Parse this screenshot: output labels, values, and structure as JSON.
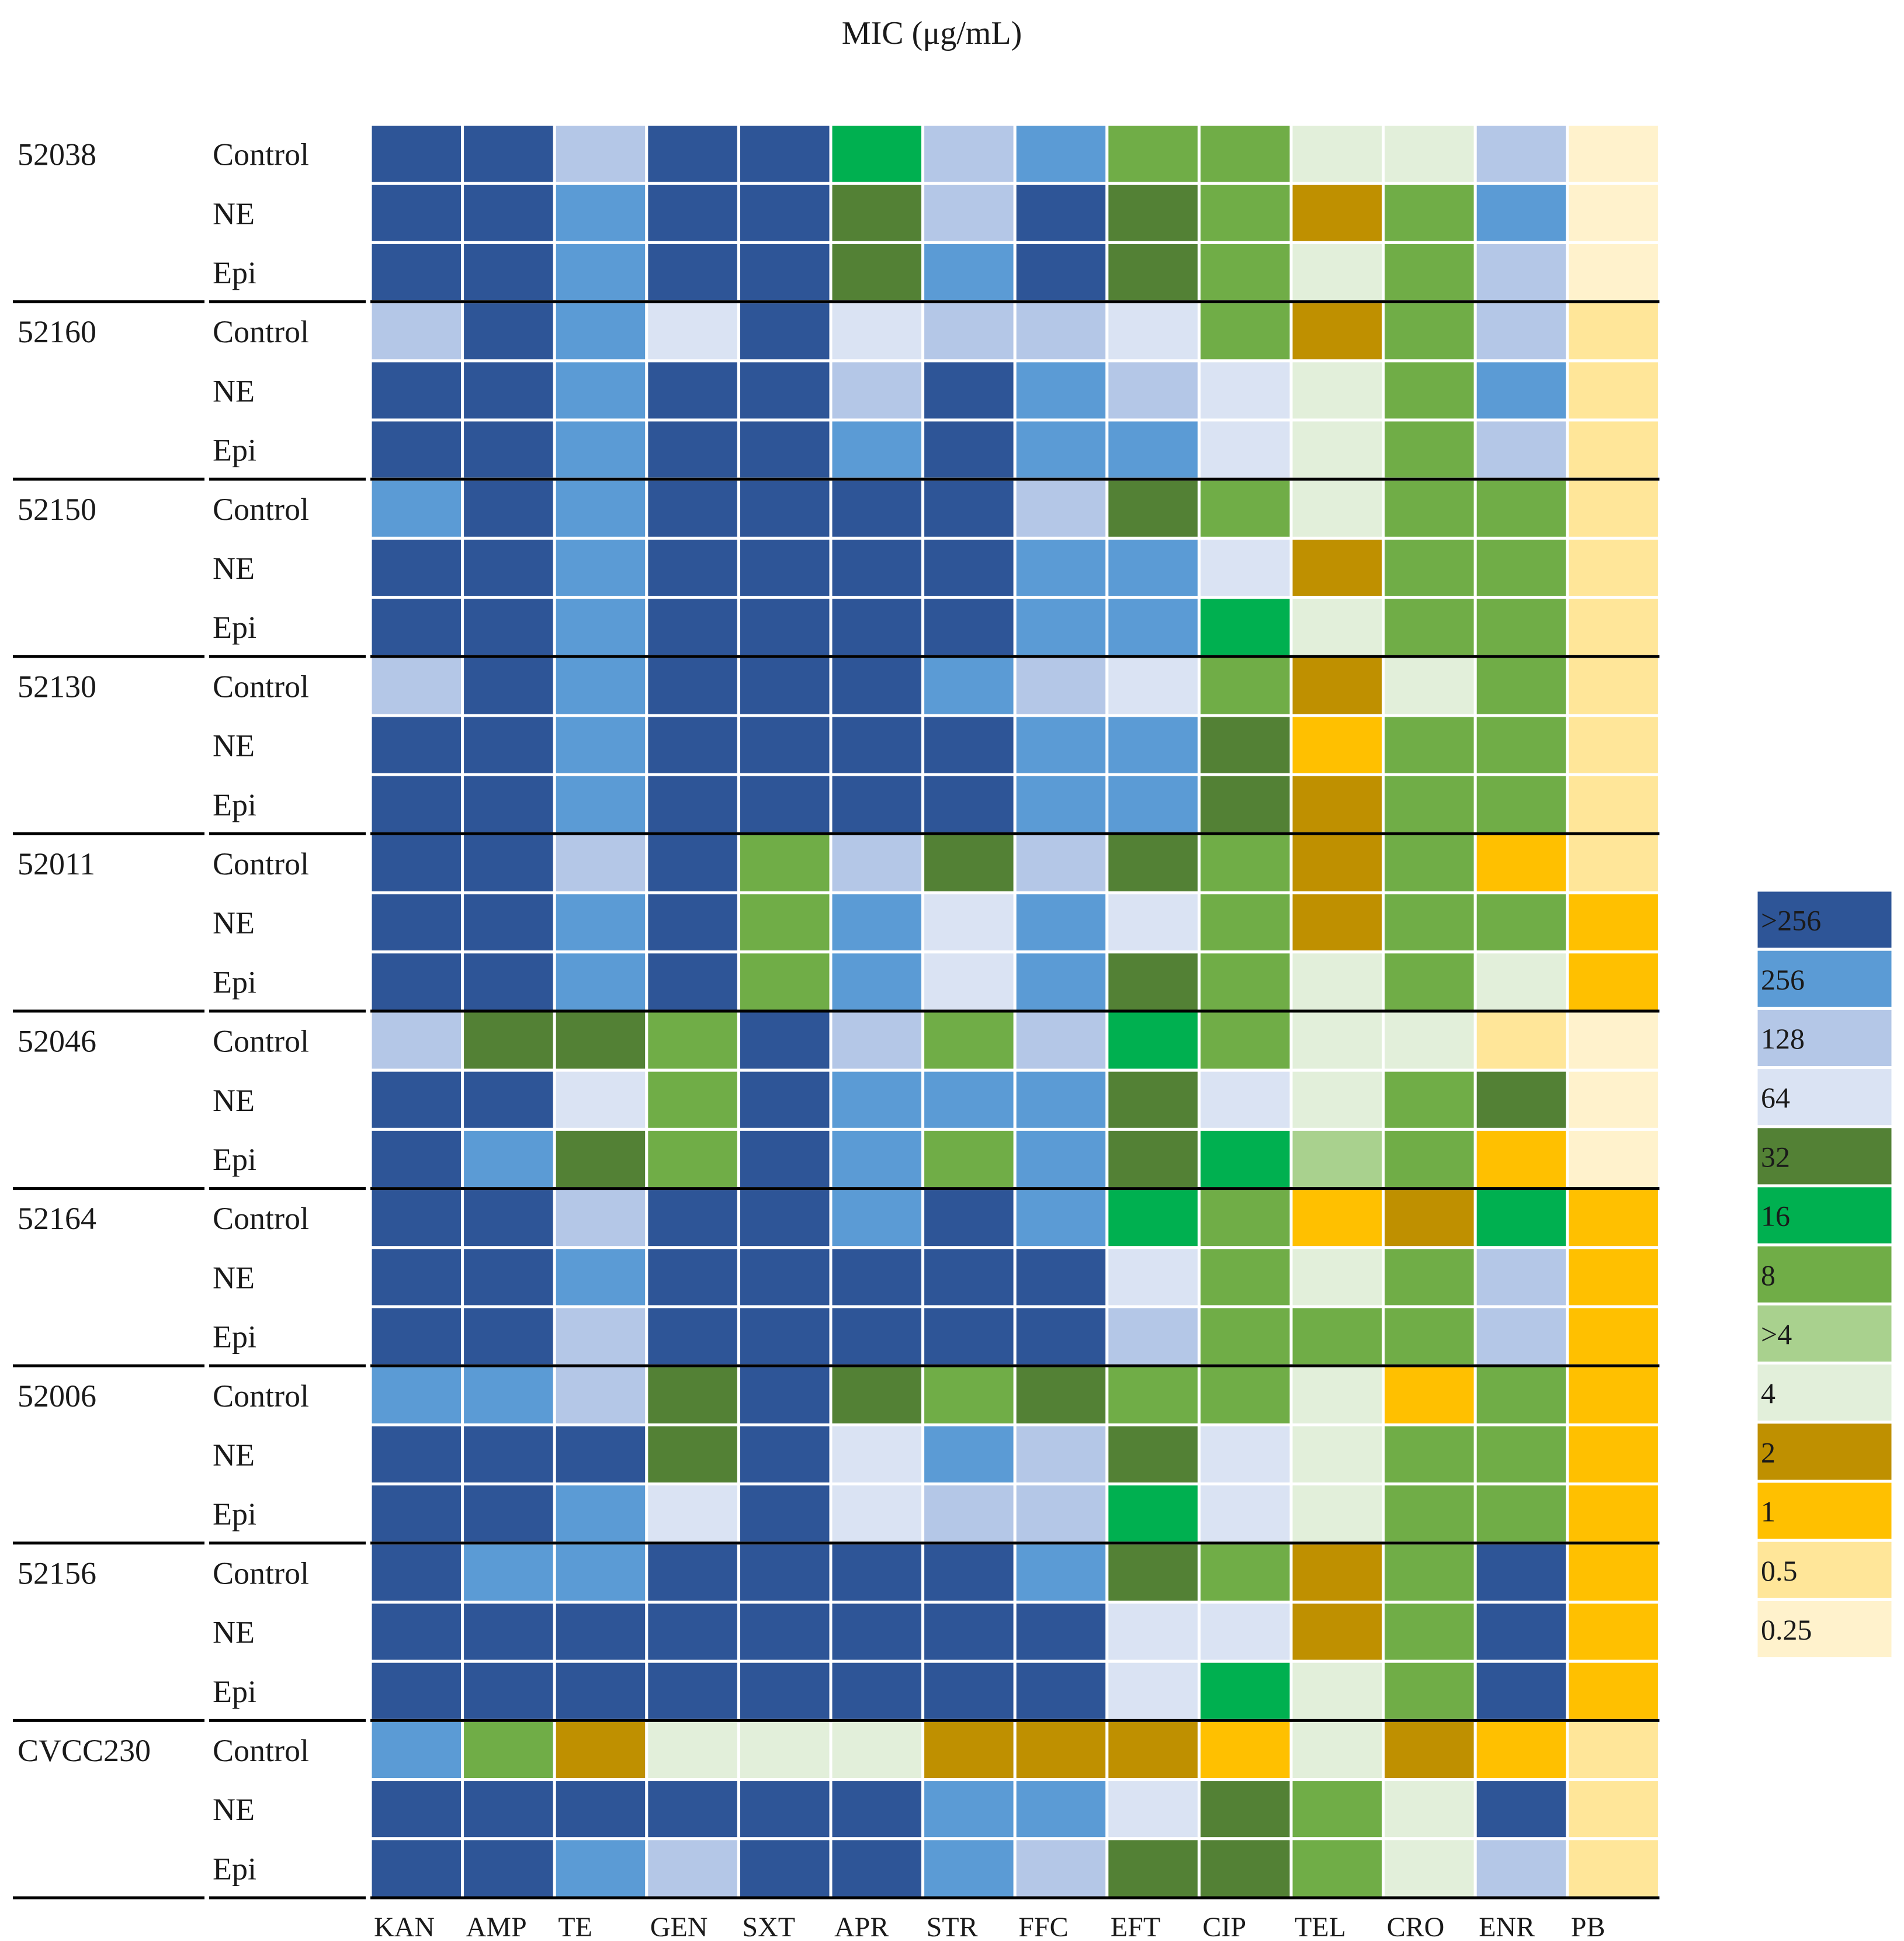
{
  "chart_data": {
    "type": "heatmap",
    "title": "MIC (μg/mL)",
    "xlabel": "",
    "ylabel": "",
    "columns": [
      "KAN",
      "AMP",
      "TE",
      "GEN",
      "SXT",
      "APR",
      "STR",
      "FFC",
      "EFT",
      "CIP",
      "TEL",
      "CRO",
      "ENR",
      "PB"
    ],
    "strains": [
      "52038",
      "52160",
      "52150",
      "52130",
      "52011",
      "52046",
      "52164",
      "52006",
      "52156",
      "CVCC230"
    ],
    "treatments": [
      "Control",
      "NE",
      "Epi"
    ],
    "legend": {
      "position": "right",
      "levels": [
        ">256",
        "256",
        "128",
        "64",
        "32",
        "16",
        "8",
        ">4",
        "4",
        "2",
        "1",
        "0.5",
        "0.25"
      ],
      "colors": [
        "#2e5597",
        "#5b9bd5",
        "#b4c7e7",
        "#dae3f3",
        "#538135",
        "#00b050",
        "#70ad47",
        "#a9d18e",
        "#e2efda",
        "#bf9000",
        "#ffc000",
        "#ffe699",
        "#fff2cc"
      ]
    },
    "rows": [
      {
        "strain": "52038",
        "treatment": "Control",
        "values": [
          ">256",
          ">256",
          "128",
          ">256",
          ">256",
          "16",
          "128",
          "256",
          "8",
          "8",
          "4",
          "4",
          "128",
          "0.25"
        ]
      },
      {
        "strain": "52038",
        "treatment": "NE",
        "values": [
          ">256",
          ">256",
          "256",
          ">256",
          ">256",
          "32",
          "128",
          ">256",
          "32",
          "8",
          "2",
          "8",
          "256",
          "0.25"
        ]
      },
      {
        "strain": "52038",
        "treatment": "Epi",
        "values": [
          ">256",
          ">256",
          "256",
          ">256",
          ">256",
          "32",
          "256",
          ">256",
          "32",
          "8",
          "4",
          "8",
          "128",
          "0.25"
        ]
      },
      {
        "strain": "52160",
        "treatment": "Control",
        "values": [
          "128",
          ">256",
          "256",
          "64",
          ">256",
          "64",
          "128",
          "128",
          "64",
          "8",
          "2",
          "8",
          "128",
          "0.5"
        ]
      },
      {
        "strain": "52160",
        "treatment": "NE",
        "values": [
          ">256",
          ">256",
          "256",
          ">256",
          ">256",
          "128",
          ">256",
          "256",
          "128",
          "64",
          "4",
          "8",
          "256",
          "0.5"
        ]
      },
      {
        "strain": "52160",
        "treatment": "Epi",
        "values": [
          ">256",
          ">256",
          "256",
          ">256",
          ">256",
          "256",
          ">256",
          "256",
          "256",
          "64",
          "4",
          "8",
          "128",
          "0.5"
        ]
      },
      {
        "strain": "52150",
        "treatment": "Control",
        "values": [
          "256",
          ">256",
          "256",
          ">256",
          ">256",
          ">256",
          ">256",
          "128",
          "32",
          "8",
          "4",
          "8",
          "8",
          "0.5"
        ]
      },
      {
        "strain": "52150",
        "treatment": "NE",
        "values": [
          ">256",
          ">256",
          "256",
          ">256",
          ">256",
          ">256",
          ">256",
          "256",
          "256",
          "64",
          "2",
          "8",
          "8",
          "0.5"
        ]
      },
      {
        "strain": "52150",
        "treatment": "Epi",
        "values": [
          ">256",
          ">256",
          "256",
          ">256",
          ">256",
          ">256",
          ">256",
          "256",
          "256",
          "16",
          "4",
          "8",
          "8",
          "0.5"
        ]
      },
      {
        "strain": "52130",
        "treatment": "Control",
        "values": [
          "128",
          ">256",
          "256",
          ">256",
          ">256",
          ">256",
          "256",
          "128",
          "64",
          "8",
          "2",
          "4",
          "8",
          "0.5"
        ]
      },
      {
        "strain": "52130",
        "treatment": "NE",
        "values": [
          ">256",
          ">256",
          "256",
          ">256",
          ">256",
          ">256",
          ">256",
          "256",
          "256",
          "32",
          "1",
          "8",
          "8",
          "0.5"
        ]
      },
      {
        "strain": "52130",
        "treatment": "Epi",
        "values": [
          ">256",
          ">256",
          "256",
          ">256",
          ">256",
          ">256",
          ">256",
          "256",
          "256",
          "32",
          "2",
          "8",
          "8",
          "0.5"
        ]
      },
      {
        "strain": "52011",
        "treatment": "Control",
        "values": [
          ">256",
          ">256",
          "128",
          ">256",
          "8",
          "128",
          "32",
          "128",
          "32",
          "8",
          "2",
          "8",
          "1",
          "0.5"
        ]
      },
      {
        "strain": "52011",
        "treatment": "NE",
        "values": [
          ">256",
          ">256",
          "256",
          ">256",
          "8",
          "256",
          "64",
          "256",
          "64",
          "8",
          "2",
          "8",
          "8",
          "1"
        ]
      },
      {
        "strain": "52011",
        "treatment": "Epi",
        "values": [
          ">256",
          ">256",
          "256",
          ">256",
          "8",
          "256",
          "64",
          "256",
          "32",
          "8",
          "4",
          "8",
          "4",
          "1"
        ]
      },
      {
        "strain": "52046",
        "treatment": "Control",
        "values": [
          "128",
          "32",
          "32",
          "8",
          ">256",
          "128",
          "8",
          "128",
          "16",
          "8",
          "4",
          "4",
          "0.5",
          "0.25"
        ]
      },
      {
        "strain": "52046",
        "treatment": "NE",
        "values": [
          ">256",
          ">256",
          "64",
          "8",
          ">256",
          "256",
          "256",
          "256",
          "32",
          "64",
          "4",
          "8",
          "32",
          "0.25"
        ]
      },
      {
        "strain": "52046",
        "treatment": "Epi",
        "values": [
          ">256",
          "256",
          "32",
          "8",
          ">256",
          "256",
          "8",
          "256",
          "32",
          "16",
          ">4",
          "8",
          "1",
          "0.25"
        ]
      },
      {
        "strain": "52164",
        "treatment": "Control",
        "values": [
          ">256",
          ">256",
          "128",
          ">256",
          ">256",
          "256",
          ">256",
          "256",
          "16",
          "8",
          "1",
          "2",
          "16",
          "1"
        ]
      },
      {
        "strain": "52164",
        "treatment": "NE",
        "values": [
          ">256",
          ">256",
          "256",
          ">256",
          ">256",
          ">256",
          ">256",
          ">256",
          "64",
          "8",
          "4",
          "8",
          "128",
          "1"
        ]
      },
      {
        "strain": "52164",
        "treatment": "Epi",
        "values": [
          ">256",
          ">256",
          "128",
          ">256",
          ">256",
          ">256",
          ">256",
          ">256",
          "128",
          "8",
          "8",
          "8",
          "128",
          "1"
        ]
      },
      {
        "strain": "52006",
        "treatment": "Control",
        "values": [
          "256",
          "256",
          "128",
          "32",
          ">256",
          "32",
          "8",
          "32",
          "8",
          "8",
          "4",
          "1",
          "8",
          "1"
        ]
      },
      {
        "strain": "52006",
        "treatment": "NE",
        "values": [
          ">256",
          ">256",
          ">256",
          "32",
          ">256",
          "64",
          "256",
          "128",
          "32",
          "64",
          "4",
          "8",
          "8",
          "1"
        ]
      },
      {
        "strain": "52006",
        "treatment": "Epi",
        "values": [
          ">256",
          ">256",
          "256",
          "64",
          ">256",
          "64",
          "128",
          "128",
          "16",
          "64",
          "4",
          "8",
          "8",
          "1"
        ]
      },
      {
        "strain": "52156",
        "treatment": "Control",
        "values": [
          ">256",
          "256",
          "256",
          ">256",
          ">256",
          ">256",
          ">256",
          "256",
          "32",
          "8",
          "2",
          "8",
          ">256",
          "1"
        ]
      },
      {
        "strain": "52156",
        "treatment": "NE",
        "values": [
          ">256",
          ">256",
          ">256",
          ">256",
          ">256",
          ">256",
          ">256",
          ">256",
          "64",
          "64",
          "2",
          "8",
          ">256",
          "1"
        ]
      },
      {
        "strain": "52156",
        "treatment": "Epi",
        "values": [
          ">256",
          ">256",
          ">256",
          ">256",
          ">256",
          ">256",
          ">256",
          ">256",
          "64",
          "16",
          "4",
          "8",
          ">256",
          "1"
        ]
      },
      {
        "strain": "CVCC230",
        "treatment": "Control",
        "values": [
          "256",
          "8",
          "2",
          "4",
          "4",
          "4",
          "2",
          "2",
          "2",
          "1",
          "4",
          "2",
          "1",
          "0.5"
        ]
      },
      {
        "strain": "CVCC230",
        "treatment": "NE",
        "values": [
          ">256",
          ">256",
          ">256",
          ">256",
          ">256",
          ">256",
          "256",
          "256",
          "64",
          "32",
          "8",
          "4",
          ">256",
          "0.5"
        ]
      },
      {
        "strain": "CVCC230",
        "treatment": "Epi",
        "values": [
          ">256",
          ">256",
          "256",
          "128",
          ">256",
          ">256",
          "256",
          "128",
          "32",
          "32",
          "8",
          "4",
          "128",
          "0.5"
        ]
      }
    ]
  }
}
